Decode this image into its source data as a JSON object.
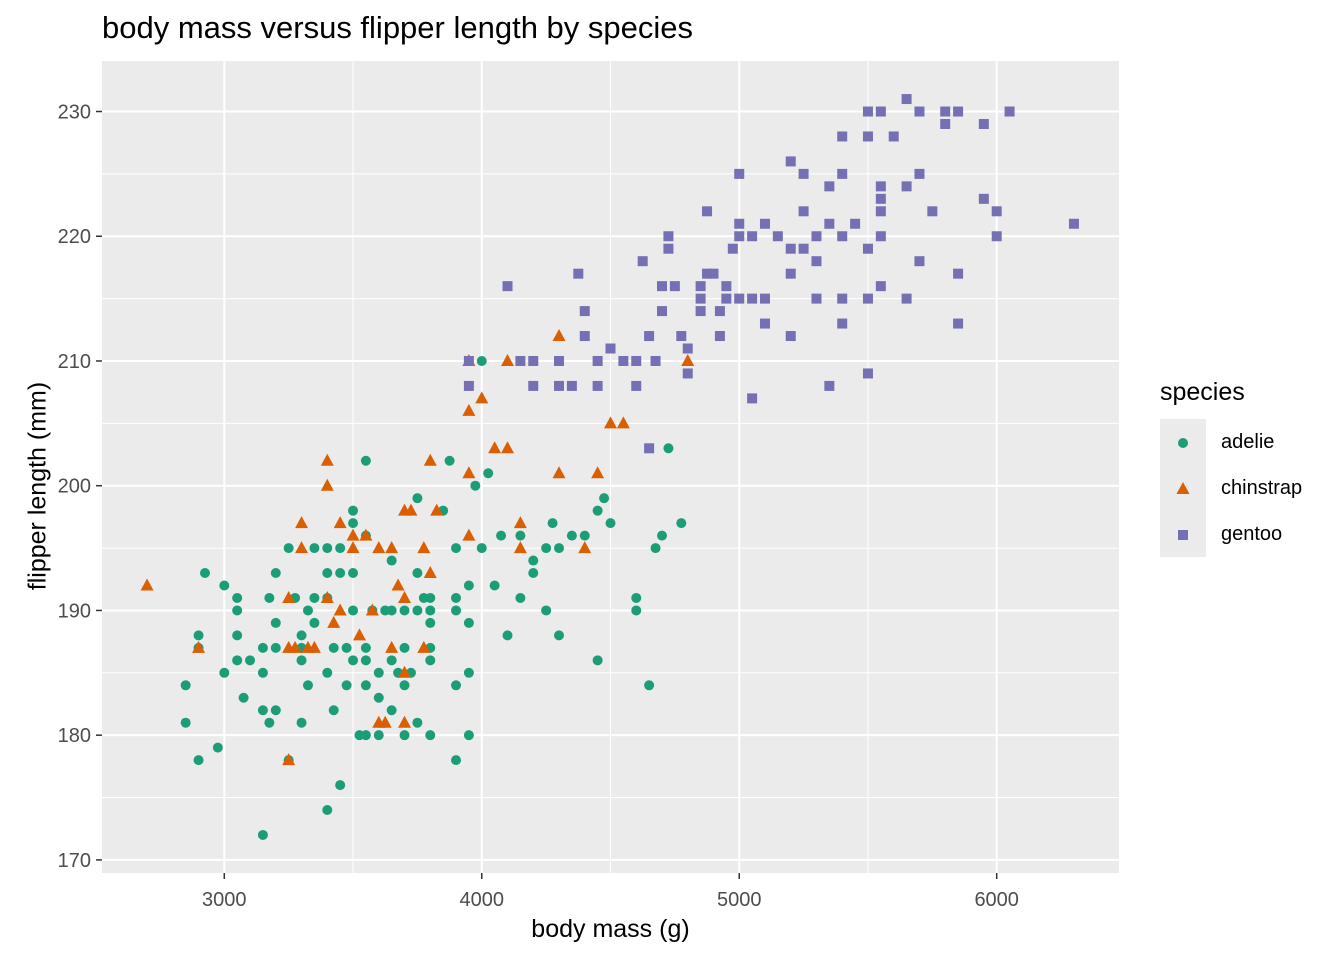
{
  "chart_data": {
    "type": "scatter",
    "title": "body mass versus flipper length by species",
    "xlabel": "body mass (g)",
    "ylabel": "flipper length (mm)",
    "xlim": [
      2525,
      6475
    ],
    "ylim": [
      168.95,
      234.05
    ],
    "x_ticks": [
      3000,
      4000,
      5000,
      6000
    ],
    "y_ticks": [
      170,
      180,
      190,
      200,
      210,
      220,
      230
    ],
    "grid": true,
    "legend": {
      "title": "species",
      "position": "right"
    },
    "series": [
      {
        "name": "adelie",
        "color": "#1b9e77",
        "shape": "circle",
        "points": [
          [
            2850,
            184
          ],
          [
            2850,
            181
          ],
          [
            2900,
            178
          ],
          [
            2900,
            187
          ],
          [
            2900,
            188
          ],
          [
            2925,
            193
          ],
          [
            2975,
            179
          ],
          [
            3000,
            185
          ],
          [
            3000,
            192
          ],
          [
            3050,
            186
          ],
          [
            3050,
            188
          ],
          [
            3050,
            190
          ],
          [
            3050,
            191
          ],
          [
            3075,
            183
          ],
          [
            3100,
            186
          ],
          [
            3150,
            185
          ],
          [
            3150,
            187
          ],
          [
            3150,
            182
          ],
          [
            3150,
            172
          ],
          [
            3175,
            191
          ],
          [
            3175,
            181
          ],
          [
            3200,
            182
          ],
          [
            3200,
            187
          ],
          [
            3200,
            189
          ],
          [
            3200,
            193
          ],
          [
            3250,
            178
          ],
          [
            3250,
            195
          ],
          [
            3275,
            191
          ],
          [
            3300,
            181
          ],
          [
            3300,
            186
          ],
          [
            3300,
            187
          ],
          [
            3300,
            188
          ],
          [
            3325,
            184
          ],
          [
            3325,
            190
          ],
          [
            3350,
            189
          ],
          [
            3350,
            191
          ],
          [
            3350,
            195
          ],
          [
            3400,
            174
          ],
          [
            3400,
            185
          ],
          [
            3400,
            191
          ],
          [
            3400,
            193
          ],
          [
            3400,
            195
          ],
          [
            3425,
            182
          ],
          [
            3425,
            187
          ],
          [
            3450,
            176
          ],
          [
            3450,
            193
          ],
          [
            3450,
            195
          ],
          [
            3475,
            187
          ],
          [
            3475,
            184
          ],
          [
            3500,
            186
          ],
          [
            3500,
            193
          ],
          [
            3500,
            190
          ],
          [
            3500,
            197
          ],
          [
            3500,
            198
          ],
          [
            3525,
            180
          ],
          [
            3550,
            180
          ],
          [
            3550,
            184
          ],
          [
            3550,
            186
          ],
          [
            3550,
            187
          ],
          [
            3550,
            196
          ],
          [
            3550,
            202
          ],
          [
            3575,
            190
          ],
          [
            3600,
            180
          ],
          [
            3600,
            183
          ],
          [
            3600,
            185
          ],
          [
            3625,
            190
          ],
          [
            3650,
            182
          ],
          [
            3650,
            186
          ],
          [
            3650,
            190
          ],
          [
            3650,
            194
          ],
          [
            3675,
            185
          ],
          [
            3700,
            180
          ],
          [
            3700,
            184
          ],
          [
            3700,
            187
          ],
          [
            3700,
            190
          ],
          [
            3725,
            185
          ],
          [
            3750,
            181
          ],
          [
            3750,
            190
          ],
          [
            3750,
            193
          ],
          [
            3750,
            199
          ],
          [
            3775,
            191
          ],
          [
            3800,
            180
          ],
          [
            3800,
            186
          ],
          [
            3800,
            187
          ],
          [
            3800,
            189
          ],
          [
            3800,
            190
          ],
          [
            3800,
            191
          ],
          [
            3850,
            198
          ],
          [
            3875,
            202
          ],
          [
            3900,
            178
          ],
          [
            3900,
            184
          ],
          [
            3900,
            190
          ],
          [
            3900,
            191
          ],
          [
            3900,
            195
          ],
          [
            3950,
            180
          ],
          [
            3950,
            185
          ],
          [
            3950,
            189
          ],
          [
            3950,
            192
          ],
          [
            3975,
            200
          ],
          [
            4000,
            195
          ],
          [
            4000,
            210
          ],
          [
            4025,
            201
          ],
          [
            4050,
            192
          ],
          [
            4075,
            196
          ],
          [
            4100,
            188
          ],
          [
            4150,
            191
          ],
          [
            4150,
            196
          ],
          [
            4200,
            193
          ],
          [
            4200,
            194
          ],
          [
            4250,
            190
          ],
          [
            4250,
            195
          ],
          [
            4275,
            197
          ],
          [
            4300,
            188
          ],
          [
            4300,
            195
          ],
          [
            4350,
            196
          ],
          [
            4400,
            196
          ],
          [
            4450,
            186
          ],
          [
            4450,
            198
          ],
          [
            4475,
            199
          ],
          [
            4500,
            197
          ],
          [
            4600,
            190
          ],
          [
            4600,
            191
          ],
          [
            4650,
            184
          ],
          [
            4675,
            195
          ],
          [
            4700,
            196
          ],
          [
            4725,
            203
          ],
          [
            4775,
            197
          ]
        ]
      },
      {
        "name": "chinstrap",
        "color": "#d95f02",
        "shape": "triangle",
        "points": [
          [
            2700,
            192
          ],
          [
            2900,
            187
          ],
          [
            3250,
            178
          ],
          [
            3250,
            187
          ],
          [
            3250,
            191
          ],
          [
            3275,
            187
          ],
          [
            3300,
            195
          ],
          [
            3300,
            197
          ],
          [
            3325,
            187
          ],
          [
            3350,
            187
          ],
          [
            3400,
            191
          ],
          [
            3400,
            200
          ],
          [
            3400,
            202
          ],
          [
            3425,
            189
          ],
          [
            3450,
            190
          ],
          [
            3450,
            197
          ],
          [
            3500,
            195
          ],
          [
            3500,
            196
          ],
          [
            3525,
            188
          ],
          [
            3550,
            196
          ],
          [
            3575,
            190
          ],
          [
            3600,
            181
          ],
          [
            3600,
            195
          ],
          [
            3625,
            181
          ],
          [
            3650,
            187
          ],
          [
            3650,
            195
          ],
          [
            3675,
            192
          ],
          [
            3700,
            181
          ],
          [
            3700,
            185
          ],
          [
            3700,
            191
          ],
          [
            3700,
            198
          ],
          [
            3725,
            198
          ],
          [
            3775,
            187
          ],
          [
            3775,
            195
          ],
          [
            3800,
            193
          ],
          [
            3800,
            202
          ],
          [
            3825,
            198
          ],
          [
            3950,
            196
          ],
          [
            3950,
            201
          ],
          [
            3950,
            206
          ],
          [
            3950,
            210
          ],
          [
            4000,
            207
          ],
          [
            4050,
            203
          ],
          [
            4100,
            203
          ],
          [
            4100,
            210
          ],
          [
            4150,
            195
          ],
          [
            4150,
            197
          ],
          [
            4300,
            201
          ],
          [
            4300,
            212
          ],
          [
            4400,
            195
          ],
          [
            4450,
            201
          ],
          [
            4500,
            205
          ],
          [
            4550,
            205
          ],
          [
            4800,
            210
          ]
        ]
      },
      {
        "name": "gentoo",
        "color": "#7570b3",
        "shape": "square",
        "points": [
          [
            3950,
            208
          ],
          [
            3950,
            210
          ],
          [
            4100,
            216
          ],
          [
            4150,
            210
          ],
          [
            4200,
            208
          ],
          [
            4200,
            210
          ],
          [
            4300,
            208
          ],
          [
            4300,
            210
          ],
          [
            4350,
            208
          ],
          [
            4375,
            217
          ],
          [
            4400,
            212
          ],
          [
            4400,
            214
          ],
          [
            4450,
            208
          ],
          [
            4450,
            210
          ],
          [
            4500,
            211
          ],
          [
            4550,
            210
          ],
          [
            4600,
            208
          ],
          [
            4600,
            210
          ],
          [
            4625,
            218
          ],
          [
            4650,
            203
          ],
          [
            4650,
            212
          ],
          [
            4675,
            210
          ],
          [
            4700,
            214
          ],
          [
            4700,
            216
          ],
          [
            4725,
            219
          ],
          [
            4725,
            220
          ],
          [
            4750,
            216
          ],
          [
            4775,
            212
          ],
          [
            4800,
            209
          ],
          [
            4800,
            211
          ],
          [
            4850,
            214
          ],
          [
            4850,
            215
          ],
          [
            4850,
            216
          ],
          [
            4875,
            217
          ],
          [
            4875,
            222
          ],
          [
            4900,
            217
          ],
          [
            4925,
            212
          ],
          [
            4925,
            214
          ],
          [
            4950,
            215
          ],
          [
            4950,
            216
          ],
          [
            4975,
            219
          ],
          [
            5000,
            215
          ],
          [
            5000,
            220
          ],
          [
            5000,
            221
          ],
          [
            5000,
            225
          ],
          [
            5050,
            215
          ],
          [
            5050,
            220
          ],
          [
            5050,
            207
          ],
          [
            5100,
            213
          ],
          [
            5100,
            215
          ],
          [
            5100,
            221
          ],
          [
            5150,
            220
          ],
          [
            5200,
            212
          ],
          [
            5200,
            217
          ],
          [
            5200,
            219
          ],
          [
            5200,
            226
          ],
          [
            5250,
            219
          ],
          [
            5250,
            222
          ],
          [
            5250,
            225
          ],
          [
            5300,
            215
          ],
          [
            5300,
            218
          ],
          [
            5300,
            220
          ],
          [
            5350,
            208
          ],
          [
            5350,
            221
          ],
          [
            5350,
            224
          ],
          [
            5400,
            213
          ],
          [
            5400,
            215
          ],
          [
            5400,
            220
          ],
          [
            5400,
            225
          ],
          [
            5400,
            228
          ],
          [
            5450,
            221
          ],
          [
            5500,
            209
          ],
          [
            5500,
            215
          ],
          [
            5500,
            219
          ],
          [
            5500,
            228
          ],
          [
            5500,
            230
          ],
          [
            5550,
            216
          ],
          [
            5550,
            220
          ],
          [
            5550,
            222
          ],
          [
            5550,
            223
          ],
          [
            5550,
            224
          ],
          [
            5550,
            230
          ],
          [
            5600,
            228
          ],
          [
            5650,
            215
          ],
          [
            5650,
            224
          ],
          [
            5650,
            231
          ],
          [
            5700,
            218
          ],
          [
            5700,
            225
          ],
          [
            5700,
            230
          ],
          [
            5750,
            222
          ],
          [
            5800,
            229
          ],
          [
            5800,
            230
          ],
          [
            5850,
            213
          ],
          [
            5850,
            217
          ],
          [
            5850,
            230
          ],
          [
            5950,
            223
          ],
          [
            5950,
            229
          ],
          [
            6000,
            220
          ],
          [
            6000,
            222
          ],
          [
            6050,
            230
          ],
          [
            6300,
            221
          ]
        ]
      }
    ]
  }
}
